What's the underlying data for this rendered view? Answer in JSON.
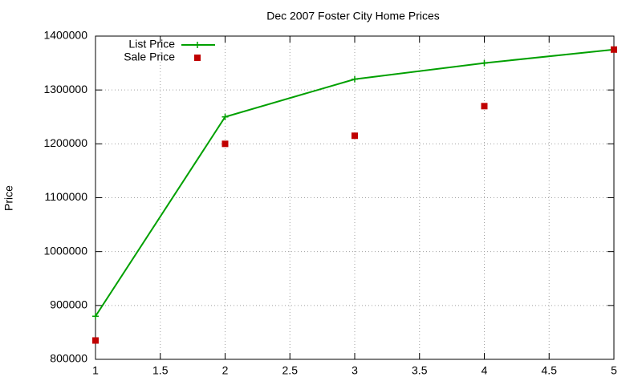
{
  "chart_data": {
    "type": "line",
    "title": "Dec 2007 Foster City Home Prices",
    "y_label": "Price",
    "x": [
      1,
      2,
      3,
      4,
      5
    ],
    "series": [
      {
        "name": "List Price",
        "color": "#00a000",
        "style": "linespoints",
        "marker": "plus",
        "values": [
          880000,
          1250000,
          1320000,
          1350000,
          1375000
        ]
      },
      {
        "name": "Sale Price",
        "color": "#c00000",
        "style": "points",
        "marker": "square",
        "values": [
          835000,
          1200000,
          1215000,
          1270000,
          1375000
        ]
      }
    ],
    "xlim": [
      1,
      5
    ],
    "xticks": [
      1,
      1.5,
      2,
      2.5,
      3,
      3.5,
      4,
      4.5,
      5
    ],
    "ylim": [
      800000,
      1400000
    ],
    "yticks": [
      800000,
      900000,
      1000000,
      1100000,
      1200000,
      1300000,
      1400000
    ],
    "grid": true,
    "legend": "top-left"
  }
}
